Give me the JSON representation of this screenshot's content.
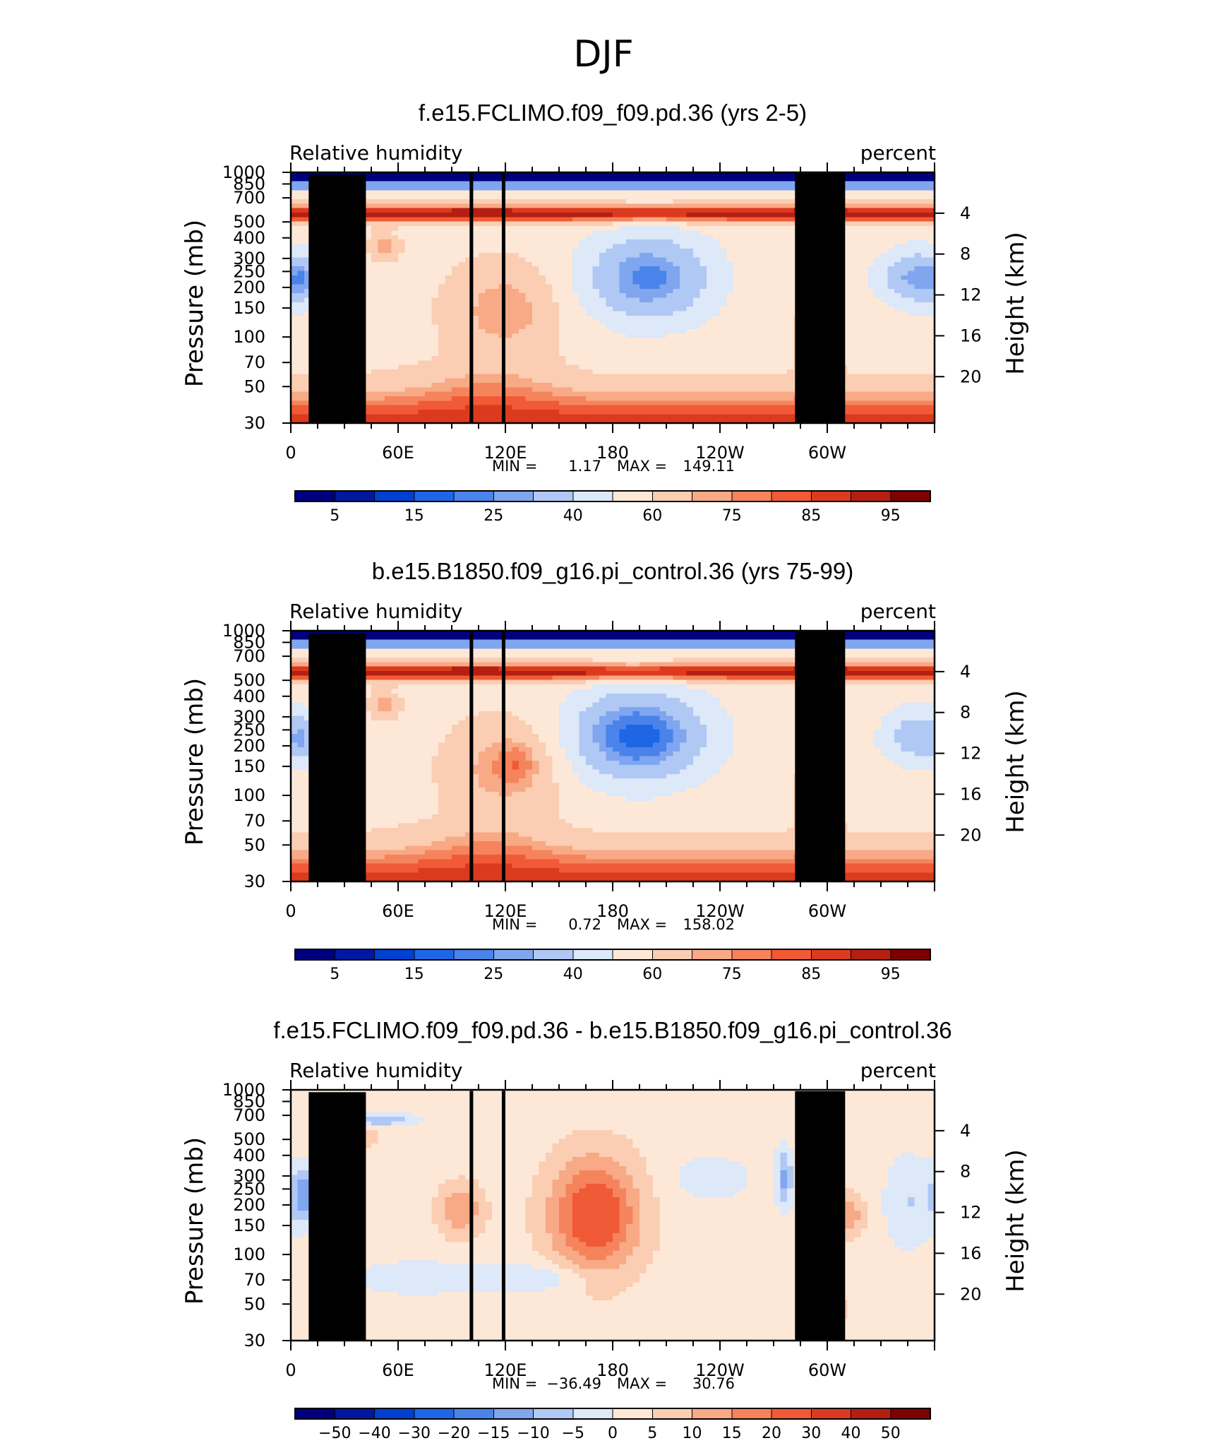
{
  "figure": {
    "title": "DJF"
  },
  "colors": {
    "abs_scale": [
      "#00007f",
      "#0018a0",
      "#0040d0",
      "#1f66e6",
      "#4a83ea",
      "#7fa6ee",
      "#b0c8f4",
      "#dde8f9",
      "#fde8d8",
      "#fbcdb2",
      "#f8a985",
      "#f5845c",
      "#f05a36",
      "#dc3a1e",
      "#b41f12",
      "#7f0000"
    ],
    "diff_scale": [
      "#00007f",
      "#0018a0",
      "#0040d0",
      "#1f66e6",
      "#4a83ea",
      "#7fa6ee",
      "#b0c8f4",
      "#dde8f9",
      "#fde8d8",
      "#fbcdb2",
      "#f8a985",
      "#f5845c",
      "#f05a36",
      "#dc3a1e",
      "#b41f12",
      "#7f0000"
    ],
    "topography": "#000000"
  },
  "panels": [
    {
      "title": "f.e15.FCLIMO.f09_f09.pd.36 (yrs 2-5)",
      "left_label": "Relative humidity",
      "right_label": "percent",
      "y_axis_title": "Pressure (mb)",
      "y2_axis_title": "Height (km)",
      "stats": {
        "min_label": "MIN =",
        "min_value": "1.17",
        "max_label": "MAX =",
        "max_value": "149.11"
      }
    },
    {
      "title": "b.e15.B1850.f09_g16.pi_control.36 (yrs 75-99)",
      "left_label": "Relative humidity",
      "right_label": "percent",
      "y_axis_title": "Pressure (mb)",
      "y2_axis_title": "Height (km)",
      "stats": {
        "min_label": "MIN =",
        "min_value": "0.72",
        "max_label": "MAX =",
        "max_value": "158.02"
      }
    },
    {
      "title": "f.e15.FCLIMO.f09_f09.pd.36 - b.e15.B1850.f09_g16.pi_control.36",
      "left_label": "Relative humidity",
      "right_label": "percent",
      "y_axis_title": "Pressure (mb)",
      "y2_axis_title": "Height (km)",
      "stats": {
        "min_label": "MIN =",
        "min_value": "−36.49",
        "max_label": "MAX =",
        "max_value": "30.76"
      }
    }
  ],
  "chart_data": [
    {
      "type": "heatmap",
      "title": "f.e15.FCLIMO.f09_f09.pd.36 (yrs 2-5)",
      "variable": "Relative humidity",
      "units": "percent",
      "x": [
        "0",
        "60E",
        "120E",
        "180",
        "120W",
        "60W"
      ],
      "x_range": [
        0,
        360
      ],
      "y_pressure_ticks": [
        "30",
        "50",
        "70",
        "100",
        "150",
        "200",
        "250",
        "300",
        "400",
        "500",
        "700",
        "850",
        "1000"
      ],
      "y_pressure_range": [
        1000,
        30
      ],
      "y_height_ticks": [
        "20",
        "16",
        "12",
        "8",
        "4"
      ],
      "colorbar_ticks": [
        "5",
        "15",
        "25",
        "40",
        "60",
        "75",
        "85",
        "95"
      ],
      "min": 1.17,
      "max": 149.11
    },
    {
      "type": "heatmap",
      "title": "b.e15.B1850.f09_g16.pi_control.36 (yrs 75-99)",
      "variable": "Relative humidity",
      "units": "percent",
      "x": [
        "0",
        "60E",
        "120E",
        "180",
        "120W",
        "60W"
      ],
      "x_range": [
        0,
        360
      ],
      "y_pressure_ticks": [
        "30",
        "50",
        "70",
        "100",
        "150",
        "200",
        "250",
        "300",
        "400",
        "500",
        "700",
        "850",
        "1000"
      ],
      "y_pressure_range": [
        1000,
        30
      ],
      "y_height_ticks": [
        "20",
        "16",
        "12",
        "8",
        "4"
      ],
      "colorbar_ticks": [
        "5",
        "15",
        "25",
        "40",
        "60",
        "75",
        "85",
        "95"
      ],
      "min": 0.72,
      "max": 158.02
    },
    {
      "type": "heatmap",
      "title": "f.e15.FCLIMO.f09_f09.pd.36 - b.e15.B1850.f09_g16.pi_control.36",
      "variable": "Relative humidity",
      "units": "percent",
      "x": [
        "0",
        "60E",
        "120E",
        "180",
        "120W",
        "60W"
      ],
      "x_range": [
        0,
        360
      ],
      "y_pressure_ticks": [
        "30",
        "50",
        "70",
        "100",
        "150",
        "200",
        "250",
        "300",
        "400",
        "500",
        "700",
        "850",
        "1000"
      ],
      "y_pressure_range": [
        1000,
        30
      ],
      "y_height_ticks": [
        "20",
        "16",
        "12",
        "8",
        "4"
      ],
      "colorbar_ticks": [
        "−50",
        "−40",
        "−30",
        "−20",
        "−15",
        "−10",
        "−5",
        "0",
        "5",
        "10",
        "15",
        "20",
        "30",
        "40",
        "50"
      ],
      "min": -36.49,
      "max": 30.76
    }
  ]
}
